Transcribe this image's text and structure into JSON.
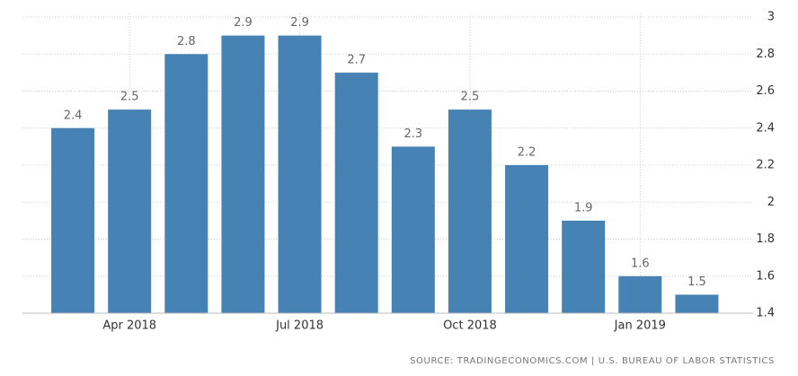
{
  "chart_data": {
    "type": "bar",
    "categories": [
      null,
      "Apr 2018",
      null,
      null,
      "Jul 2018",
      null,
      null,
      "Oct 2018",
      null,
      null,
      "Jan 2019",
      null
    ],
    "values": [
      2.4,
      2.5,
      2.8,
      2.9,
      2.9,
      2.7,
      2.3,
      2.5,
      2.2,
      1.9,
      1.6,
      1.5
    ],
    "color": "#4682b4",
    "ylim": [
      1.4,
      3
    ],
    "yticks": [
      1.4,
      1.6,
      1.8,
      2,
      2.2,
      2.4,
      2.6,
      2.8,
      3
    ],
    "grid": true,
    "source": "SOURCE: TRADINGECONOMICS.COM | U.S. BUREAU OF LABOR STATISTICS"
  }
}
